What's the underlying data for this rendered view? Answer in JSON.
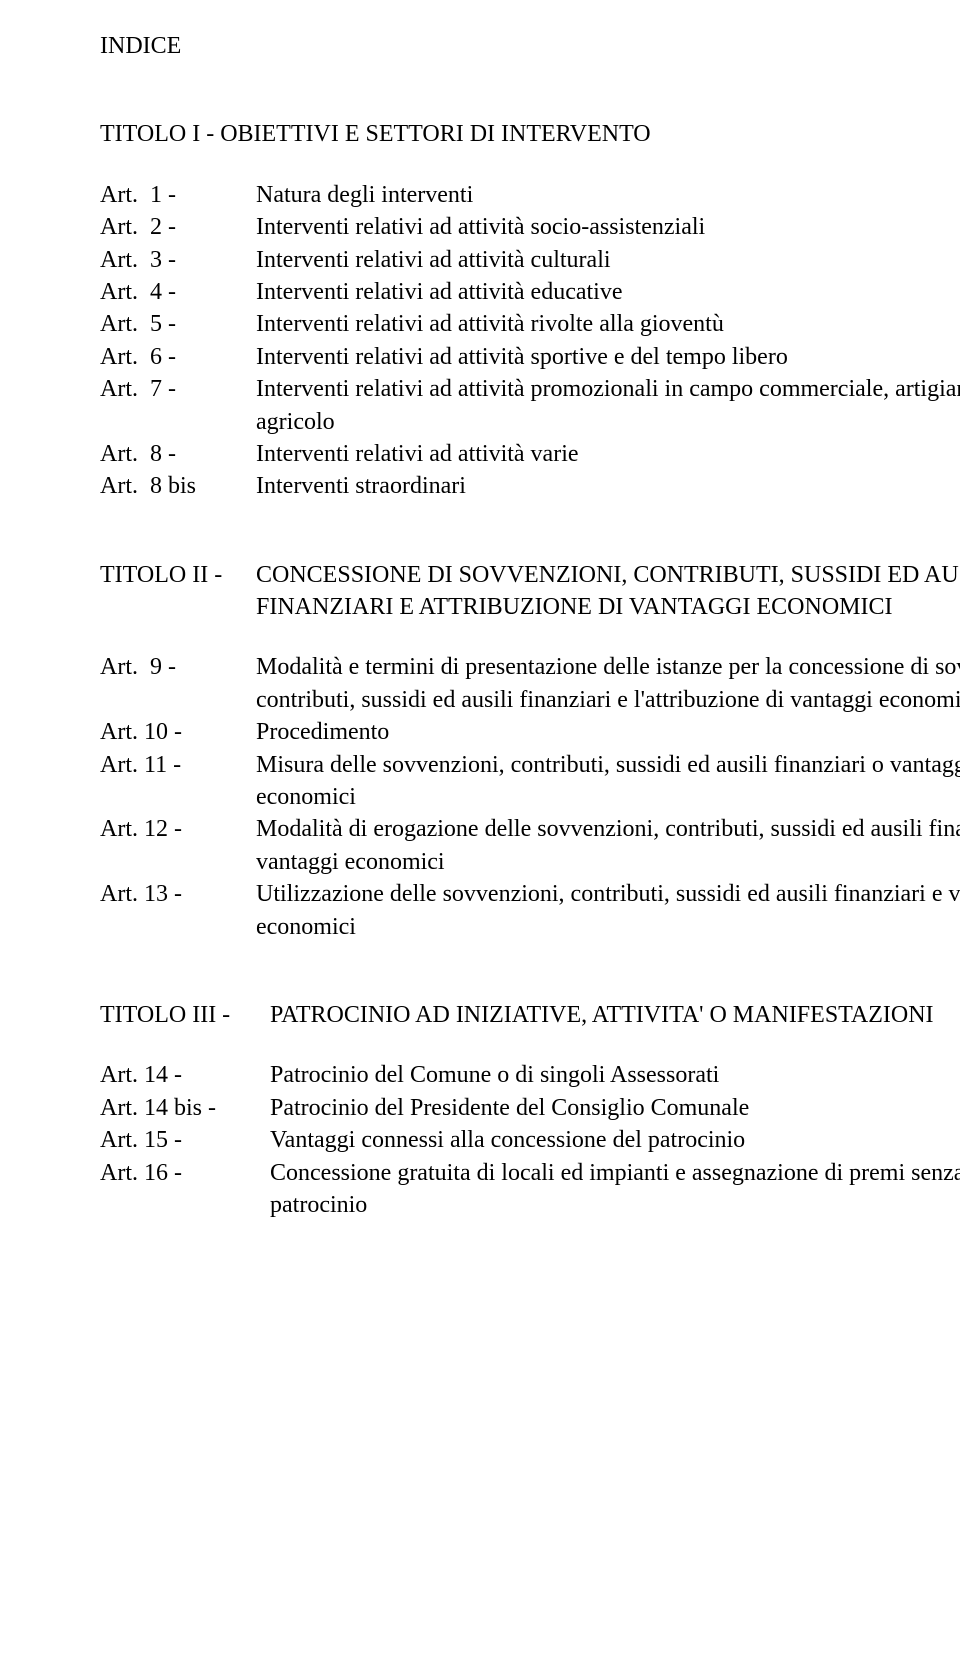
{
  "heading": "INDICE",
  "title1": "TITOLO I - OBIETTIVI E SETTORI DI INTERVENTO",
  "t1": {
    "items": [
      {
        "label": "Art.  1 -",
        "text": "Natura degli interventi"
      },
      {
        "label": "Art.  2 -",
        "text": "Interventi relativi ad attività socio-assistenziali"
      },
      {
        "label": "Art.  3 -",
        "text": "Interventi relativi ad attività culturali"
      },
      {
        "label": "Art.  4 -",
        "text": "Interventi relativi ad attività educative"
      },
      {
        "label": "Art.  5 -",
        "text": "Interventi relativi ad attività rivolte alla gioventù"
      },
      {
        "label": "Art.  6 -",
        "text": "Interventi relativi ad attività sportive e del tempo libero"
      },
      {
        "label": "Art.  7 -",
        "text": "Interventi relativi ad attività promozionali in campo commerciale, artigianale ed agricolo"
      },
      {
        "label": "Art.  8 -",
        "text": "Interventi relativi ad attività varie"
      },
      {
        "label": "Art.  8 bis",
        "text": "Interventi straordinari"
      }
    ]
  },
  "title2": {
    "label": "TITOLO II -",
    "text": "CONCESSIONE DI SOVVENZIONI, CONTRIBUTI, SUSSIDI ED AUSILI FINANZIARI E ATTRIBUZIONE DI VANTAGGI ECONOMICI"
  },
  "t2": {
    "items": [
      {
        "label": "Art.  9 -",
        "text": "Modalità e termini di presentazione delle istanze per la concessione di sovvenzioni, contributi, sussidi ed ausili finanziari e l'attribuzione di vantaggi economici"
      },
      {
        "label": "Art. 10 -",
        "text": "Procedimento"
      },
      {
        "label": "Art. 11 -",
        "text": "Misura delle sovvenzioni, contributi, sussidi ed ausili finanziari o vantaggi economici"
      },
      {
        "label": "Art. 12 -",
        "text": "Modalità di erogazione delle sovvenzioni, contributi, sussidi ed ausili finanziari e vantaggi economici"
      },
      {
        "label": "Art. 13 -",
        "text": "Utilizzazione delle sovvenzioni, contributi, sussidi ed ausili finanziari e vantaggi economici"
      }
    ]
  },
  "title3": {
    "label": "TITOLO III -",
    "text": "PATROCINIO AD INIZIATIVE, ATTIVITA' O MANIFESTAZIONI"
  },
  "t3": {
    "items": [
      {
        "label": "Art. 14 -",
        "text": "Patrocinio del Comune o di singoli Assessorati"
      },
      {
        "label": "Art. 14 bis -",
        "text": "Patrocinio del Presidente del Consiglio Comunale"
      },
      {
        "label": "Art. 15 -",
        "text": "Vantaggi connessi alla concessione del patrocinio"
      },
      {
        "label": "Art. 16 -",
        "text": "Concessione gratuita di locali ed impianti e assegnazione di premi senza patrocinio"
      }
    ]
  }
}
